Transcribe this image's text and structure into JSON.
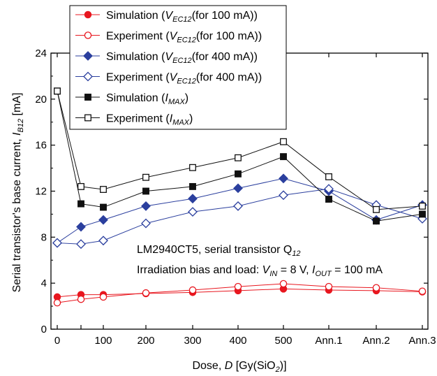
{
  "chart_data": {
    "type": "line",
    "x": [
      "0",
      "50",
      "100",
      "200",
      "300",
      "400",
      "500",
      "Ann.1",
      "Ann.2",
      "Ann.3"
    ],
    "xlabel": {
      "prefix": "Dose, ",
      "var": "D",
      "unit_open": " [Gy(SiO",
      "unit_sub": "2",
      "unit_close": ")]"
    },
    "ylabel": {
      "prefix": "Serial transistor's base current, ",
      "var": "I",
      "var_sub": "B12",
      "unit": " [mA]"
    },
    "ylim": [
      0,
      24
    ],
    "yticks": [
      "0",
      "4",
      "8",
      "12",
      "16",
      "20",
      "24"
    ],
    "xticks": [
      "0",
      "100",
      "200",
      "300",
      "400",
      "500",
      "Ann.1",
      "Ann.2",
      "Ann.3"
    ],
    "grid": false,
    "legend_position": "top-left",
    "series": [
      {
        "name": "Simulation (V_EC12(for 100 mA))",
        "legend": {
          "pre": "Simulation (",
          "var": "V",
          "sub": "EC12",
          "post": "(for 100 mA))"
        },
        "color": "#e8171f",
        "marker": "circle",
        "filled": true,
        "values": [
          2.8,
          3.0,
          3.0,
          3.1,
          3.2,
          3.35,
          3.5,
          3.4,
          3.35,
          3.25
        ]
      },
      {
        "name": "Experiment (V_EC12(for 100 mA))",
        "legend": {
          "pre": "Experiment (",
          "var": "V",
          "sub": "EC12",
          "post": "(for 100 mA))"
        },
        "color": "#e8171f",
        "marker": "circle",
        "filled": false,
        "values": [
          2.3,
          2.6,
          2.8,
          3.15,
          3.4,
          3.7,
          3.95,
          3.7,
          3.6,
          3.3
        ]
      },
      {
        "name": "Simulation (V_EC12(for 400 mA))",
        "legend": {
          "pre": "Simulation (",
          "var": "V",
          "sub": "EC12",
          "post": "(for 400 mA))"
        },
        "color": "#2b3f9e",
        "marker": "diamond",
        "filled": true,
        "values": [
          7.5,
          8.9,
          9.5,
          10.7,
          11.35,
          12.25,
          13.1,
          12.0,
          9.5,
          10.8
        ]
      },
      {
        "name": "Experiment (V_EC12(for 400 mA))",
        "legend": {
          "pre": "Experiment (",
          "var": "V",
          "sub": "EC12",
          "post": "(for 400 mA))"
        },
        "color": "#2b3f9e",
        "marker": "diamond",
        "filled": false,
        "values": [
          7.5,
          7.4,
          7.7,
          9.2,
          10.2,
          10.7,
          11.65,
          12.2,
          10.8,
          9.6
        ]
      },
      {
        "name": "Simulation (I_MAX)",
        "legend": {
          "pre": "Simulation (",
          "var": "I",
          "sub": "MAX",
          "post": ")"
        },
        "color": "#111111",
        "marker": "square",
        "filled": true,
        "values": [
          20.7,
          10.9,
          10.6,
          12.0,
          12.4,
          13.5,
          15.0,
          11.3,
          9.4,
          10.0
        ]
      },
      {
        "name": "Experiment (I_MAX)",
        "legend": {
          "pre": "Experiment (",
          "var": "I",
          "sub": "MAX",
          "post": ")"
        },
        "color": "#111111",
        "marker": "square",
        "filled": false,
        "values": [
          20.7,
          12.4,
          12.15,
          13.2,
          14.05,
          14.9,
          16.3,
          13.25,
          10.4,
          10.7
        ]
      }
    ],
    "annotations": [
      {
        "parts": [
          {
            "t": "LM2940CT5, serial transistor Q"
          },
          {
            "t": "12",
            "sub": true
          }
        ]
      },
      {
        "parts": [
          {
            "t": "Irradiation bias and load:  "
          },
          {
            "t": "V",
            "ital": true
          },
          {
            "t": "IN",
            "sub": true
          },
          {
            "t": " = 8 V, "
          },
          {
            "t": "I",
            "ital": true
          },
          {
            "t": "OUT",
            "sub": true
          },
          {
            "t": " = 100 mA"
          }
        ]
      }
    ]
  }
}
